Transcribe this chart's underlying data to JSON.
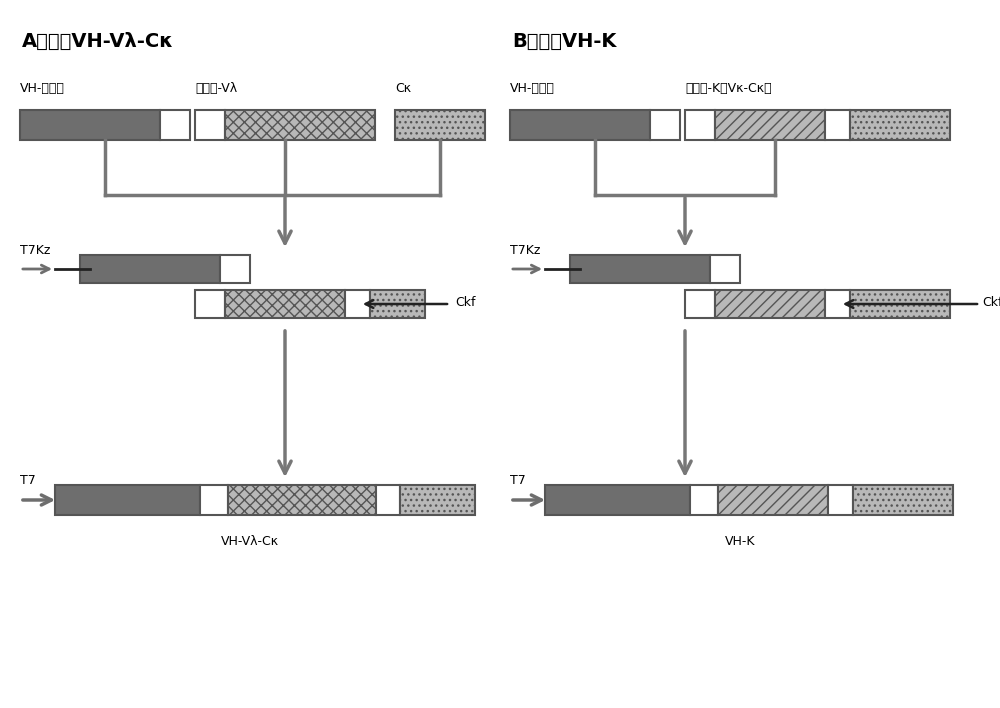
{
  "title_A": "A）构建VH-Vλ-Cκ",
  "title_B": "B）构建VH-K",
  "label_A_vh": "VH-连接肽",
  "label_A_vl": "连接肽-Vλ",
  "label_A_ck": "Cκ",
  "label_B_vh": "VH-连接肽",
  "label_B_vk": "连接肽-K（Vκ-Cκ）",
  "label_T7kz": "T7Kz",
  "label_Ckf": "Ckf",
  "label_T7": "T7",
  "label_bottom_A": "VH-Vλ-Cκ",
  "label_bottom_B": "VH-K",
  "gray_dark": "#6e6e6e",
  "gray_light": "#b8b8b8",
  "white": "#ffffff",
  "arrow_color": "#808080",
  "bg_color": "#ffffff",
  "border_color": "#555555"
}
